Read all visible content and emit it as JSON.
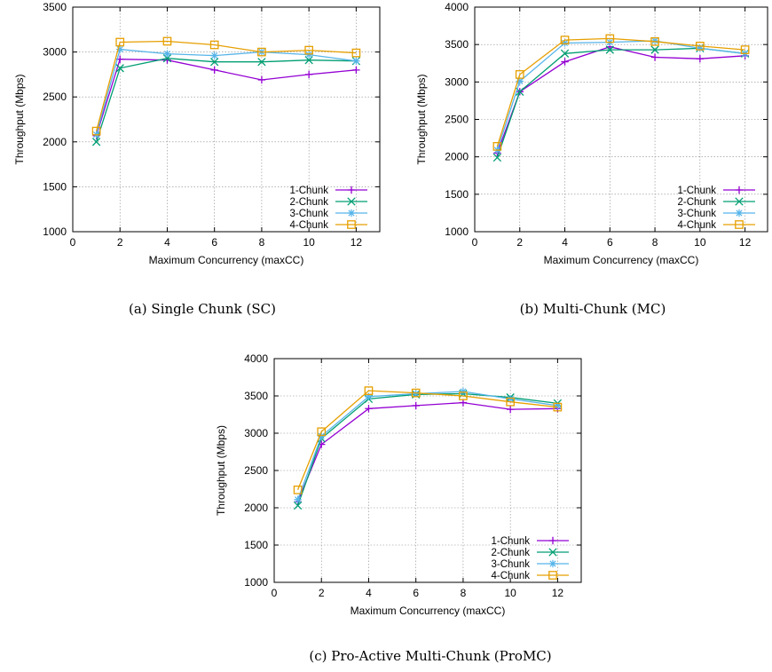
{
  "chart_data": [
    {
      "type": "line",
      "caption": "(a) Single Chunk (SC)",
      "xlabel": "Maximum Concurrency (maxCC)",
      "ylabel": "Throughput (Mbps)",
      "xlim": [
        0,
        13
      ],
      "ylim": [
        1000,
        3500
      ],
      "xticks": [
        0,
        2,
        4,
        6,
        8,
        10,
        12
      ],
      "yticks": [
        1000,
        1500,
        2000,
        2500,
        3000,
        3500
      ],
      "grid": true,
      "legend": "bottom-right",
      "x": [
        1,
        2,
        4,
        6,
        8,
        10,
        12
      ],
      "series": [
        {
          "name": "1-Chunk",
          "values": [
            2070,
            2920,
            2910,
            2800,
            2690,
            2750,
            2800
          ]
        },
        {
          "name": "2-Chunk",
          "values": [
            2000,
            2820,
            2930,
            2890,
            2890,
            2910,
            2900
          ]
        },
        {
          "name": "3-Chunk",
          "values": [
            2080,
            3030,
            2980,
            2960,
            3000,
            2970,
            2900
          ]
        },
        {
          "name": "4-Chunk",
          "values": [
            2120,
            3110,
            3120,
            3080,
            3000,
            3020,
            2990
          ]
        }
      ]
    },
    {
      "type": "line",
      "caption": "(b) Multi-Chunk (MC)",
      "xlabel": "Maximum Concurrency (maxCC)",
      "ylabel": "Throughput (Mbps)",
      "xlim": [
        0,
        13
      ],
      "ylim": [
        1000,
        4000
      ],
      "xticks": [
        0,
        2,
        4,
        6,
        8,
        10,
        12
      ],
      "yticks": [
        1000,
        1500,
        2000,
        2500,
        3000,
        3500,
        4000
      ],
      "grid": true,
      "legend": "bottom-right",
      "x": [
        1,
        2,
        4,
        6,
        8,
        10,
        12
      ],
      "series": [
        {
          "name": "1-Chunk",
          "values": [
            2050,
            2870,
            3270,
            3470,
            3330,
            3310,
            3350
          ]
        },
        {
          "name": "2-Chunk",
          "values": [
            1990,
            2870,
            3380,
            3430,
            3430,
            3450,
            3380
          ]
        },
        {
          "name": "3-Chunk",
          "values": [
            2090,
            3010,
            3520,
            3530,
            3550,
            3450,
            3380
          ]
        },
        {
          "name": "4-Chunk",
          "values": [
            2140,
            3100,
            3560,
            3580,
            3540,
            3480,
            3430
          ]
        }
      ]
    },
    {
      "type": "line",
      "caption": "(c) Pro-Active Multi-Chunk (ProMC)",
      "xlabel": "Maximum Concurrency (maxCC)",
      "ylabel": "Throughput (Mbps)",
      "xlim": [
        0,
        13
      ],
      "ylim": [
        1000,
        4000
      ],
      "xticks": [
        0,
        2,
        4,
        6,
        8,
        10,
        12
      ],
      "yticks": [
        1000,
        1500,
        2000,
        2500,
        3000,
        3500,
        4000
      ],
      "grid": true,
      "legend": "bottom-right",
      "x": [
        1,
        2,
        4,
        6,
        8,
        10,
        12
      ],
      "series": [
        {
          "name": "1-Chunk",
          "values": [
            2080,
            2850,
            3330,
            3370,
            3410,
            3320,
            3330
          ]
        },
        {
          "name": "2-Chunk",
          "values": [
            2030,
            2930,
            3460,
            3520,
            3530,
            3480,
            3400
          ]
        },
        {
          "name": "3-Chunk",
          "values": [
            2110,
            2960,
            3490,
            3530,
            3560,
            3460,
            3370
          ]
        },
        {
          "name": "4-Chunk",
          "values": [
            2240,
            3020,
            3570,
            3540,
            3500,
            3420,
            3350
          ]
        }
      ]
    }
  ],
  "colors": {
    "1-Chunk": "#9400d3",
    "2-Chunk": "#009e73",
    "3-Chunk": "#56b4e9",
    "4-Chunk": "#e69f00"
  },
  "markers": {
    "1-Chunk": "plus",
    "2-Chunk": "cross",
    "3-Chunk": "asterisk",
    "4-Chunk": "open-square"
  }
}
